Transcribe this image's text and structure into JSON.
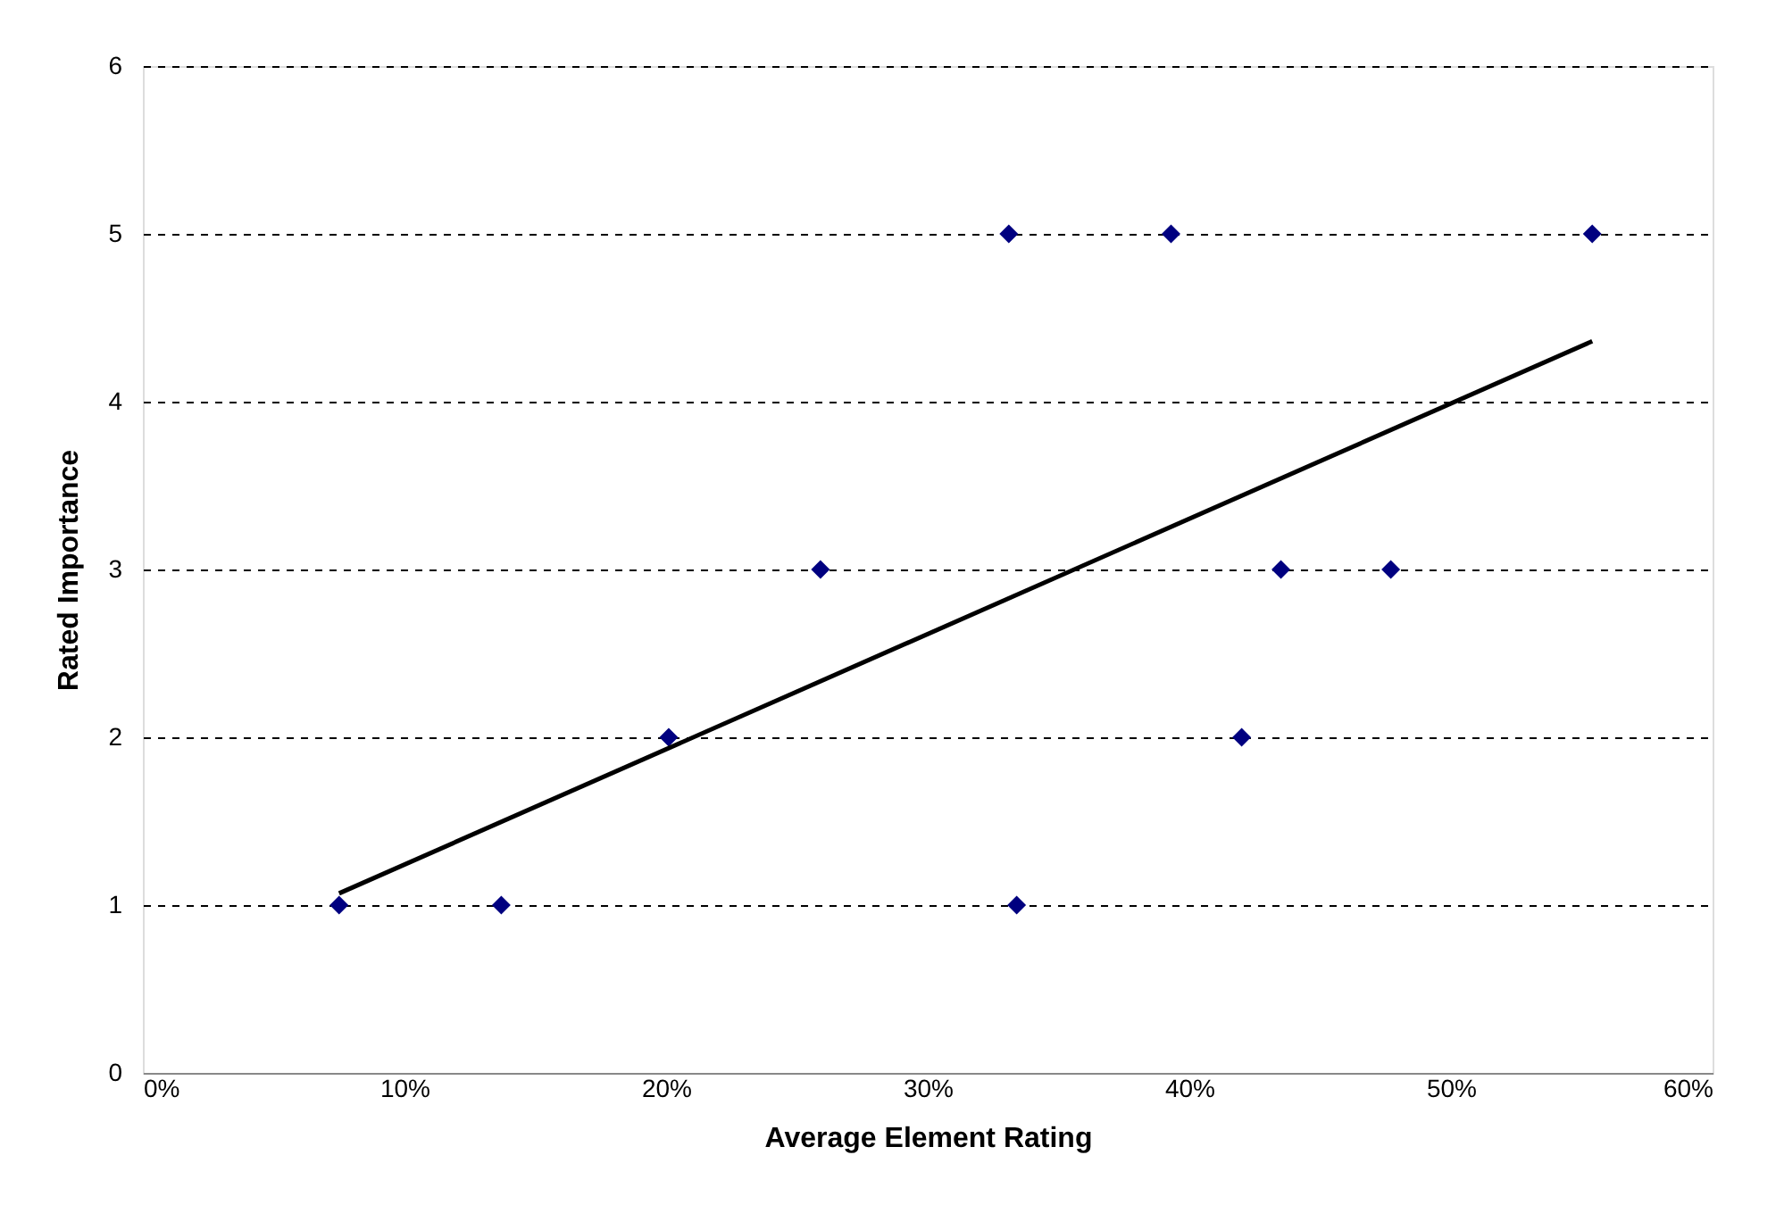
{
  "chart_data": {
    "type": "scatter",
    "xlabel": "Average Element Rating",
    "ylabel": "Rated Importance",
    "xlim": [
      0,
      60
    ],
    "ylim": [
      0,
      6
    ],
    "xticks": [
      {
        "value": 0,
        "label": "0%"
      },
      {
        "value": 10,
        "label": "10%"
      },
      {
        "value": 20,
        "label": "20%"
      },
      {
        "value": 30,
        "label": "30%"
      },
      {
        "value": 40,
        "label": "40%"
      },
      {
        "value": 50,
        "label": "50%"
      },
      {
        "value": 60,
        "label": "60%"
      }
    ],
    "yticks": [
      0,
      1,
      2,
      3,
      4,
      5,
      6
    ],
    "grid": "y",
    "series": [
      {
        "marker": "diamond",
        "color": "#000080",
        "x": [
          7.5,
          13.7,
          20.1,
          25.9,
          33.1,
          33.4,
          39.3,
          42.0,
          43.5,
          47.7,
          55.4
        ],
        "values": [
          1,
          1,
          2,
          3,
          5,
          1,
          5,
          2,
          3,
          3,
          5
        ]
      },
      {
        "type": "line",
        "color": "#000000",
        "line_style": "solid",
        "x": [
          7.5,
          55.4
        ],
        "values": [
          1.07,
          4.36
        ]
      }
    ]
  }
}
